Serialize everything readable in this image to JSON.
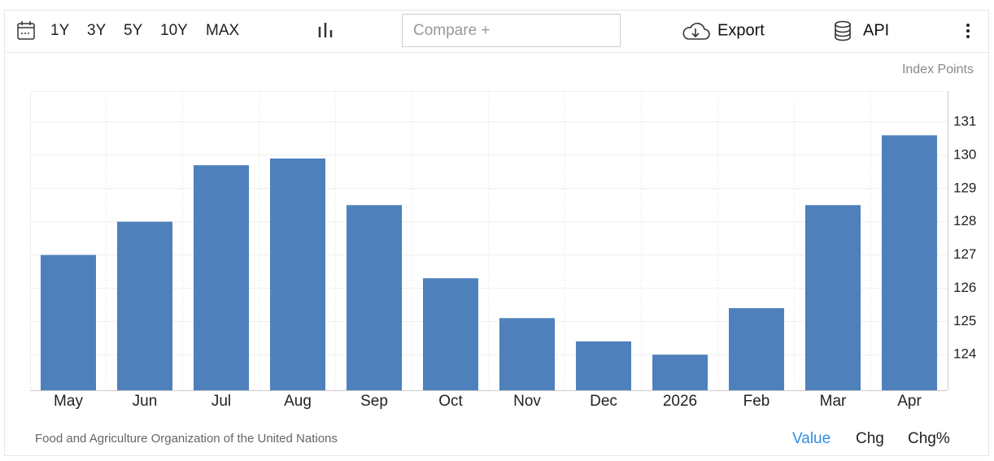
{
  "toolbar": {
    "ranges": [
      "1Y",
      "3Y",
      "5Y",
      "10Y",
      "MAX"
    ],
    "compare": "Compare +",
    "export": "Export",
    "api": "API"
  },
  "chart_data": {
    "type": "bar",
    "y_axis_label": "Index Points",
    "categories": [
      "May",
      "Jun",
      "Jul",
      "Aug",
      "Sep",
      "Oct",
      "Nov",
      "Dec",
      "2026",
      "Feb",
      "Mar",
      "Apr"
    ],
    "values": [
      127.0,
      128.0,
      129.7,
      129.9,
      128.5,
      126.3,
      125.1,
      124.4,
      124.0,
      125.4,
      128.5,
      130.6
    ],
    "color": "#4e80bc",
    "ylim": [
      122.93,
      131.93
    ],
    "yticks": [
      124,
      125,
      126,
      127,
      128,
      129,
      130,
      131
    ],
    "grid": true
  },
  "footer": {
    "source": "Food and Agriculture Organization of the United Nations",
    "modes": [
      "Value",
      "Chg",
      "Chg%"
    ]
  }
}
